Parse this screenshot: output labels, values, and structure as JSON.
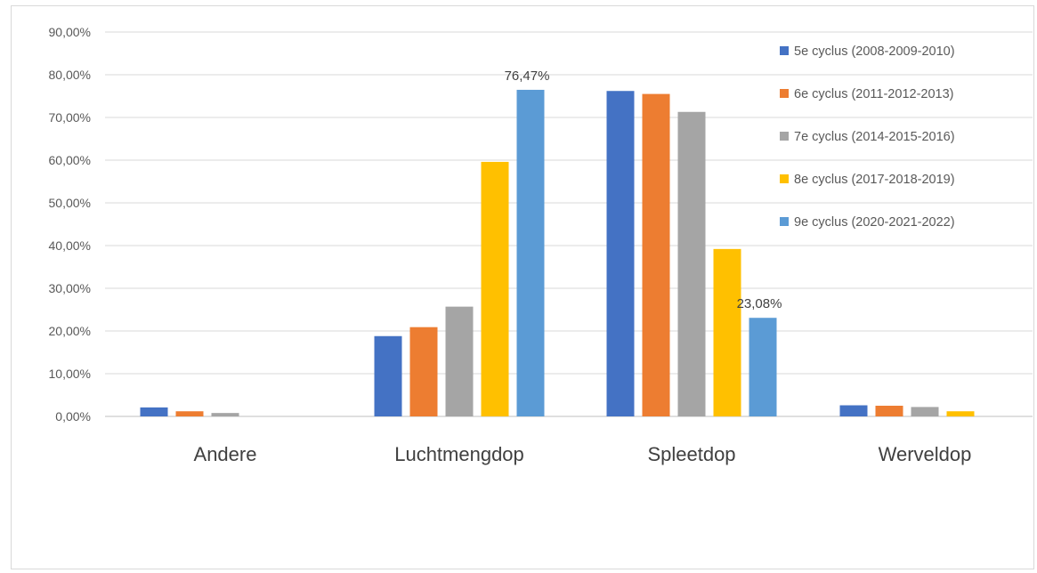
{
  "chart_data": {
    "type": "bar",
    "categories": [
      "Andere",
      "Luchtmengdop",
      "Spleetdop",
      "Werveldop"
    ],
    "series": [
      {
        "name": "5e cyclus (2008-2009-2010)",
        "color": "#4472C4",
        "values": [
          2.1,
          18.8,
          76.2,
          2.6
        ]
      },
      {
        "name": "6e cyclus (2011-2012-2013)",
        "color": "#ED7D31",
        "values": [
          1.2,
          20.9,
          75.5,
          2.5
        ]
      },
      {
        "name": "7e cyclus (2014-2015-2016)",
        "color": "#A5A5A5",
        "values": [
          0.8,
          25.7,
          71.3,
          2.2
        ]
      },
      {
        "name": "8e cyclus (2017-2018-2019)",
        "color": "#FFC000",
        "values": [
          0.0,
          59.6,
          39.2,
          1.2
        ]
      },
      {
        "name": "9e cyclus (2020-2021-2022)",
        "color": "#5B9BD5",
        "values": [
          0.0,
          76.47,
          23.08,
          0.0
        ]
      }
    ],
    "yticks": [
      "0,00%",
      "10,00%",
      "20,00%",
      "30,00%",
      "40,00%",
      "50,00%",
      "60,00%",
      "70,00%",
      "80,00%",
      "90,00%"
    ],
    "ylim": [
      0,
      90
    ],
    "grid": true,
    "legend_position": "right",
    "data_labels": [
      {
        "series": 4,
        "category": 1,
        "text": "76,47%"
      },
      {
        "series": 4,
        "category": 2,
        "text": "23,08%"
      }
    ]
  }
}
